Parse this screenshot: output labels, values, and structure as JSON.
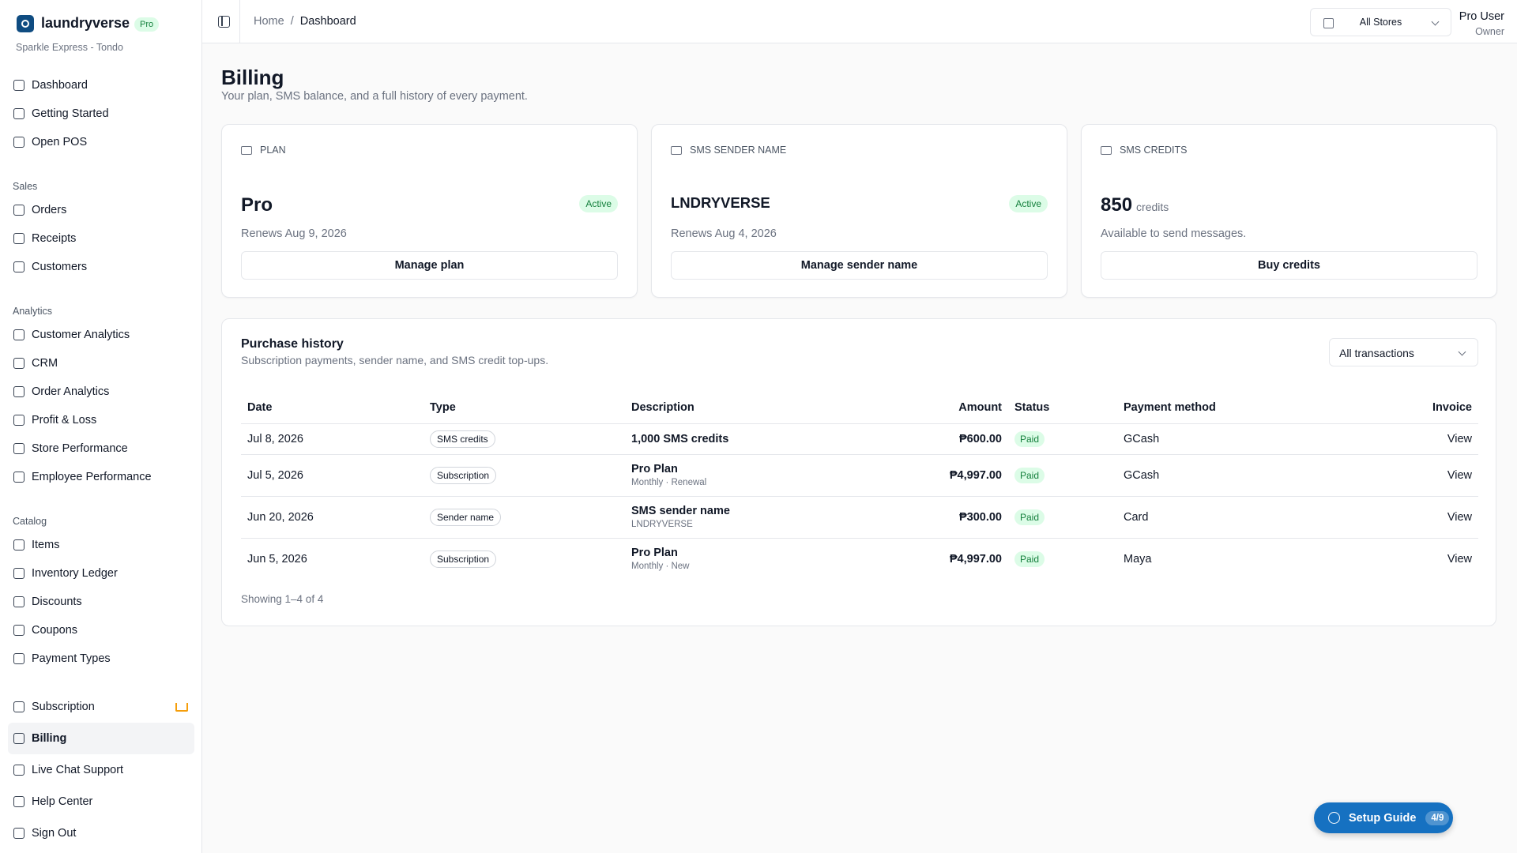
{
  "brand": {
    "name": "laundryverse",
    "badge": "Pro",
    "store": "Sparkle Express - Tondo"
  },
  "nav": {
    "top": [
      "Dashboard",
      "Getting Started",
      "Open POS"
    ],
    "groups": [
      {
        "label": "Sales",
        "items": [
          "Orders",
          "Receipts",
          "Customers"
        ]
      },
      {
        "label": "Analytics",
        "items": [
          "Customer Analytics",
          "CRM",
          "Order Analytics",
          "Profit & Loss",
          "Store Performance",
          "Employee Performance"
        ]
      },
      {
        "label": "Catalog",
        "items": [
          "Items",
          "Inventory Ledger",
          "Discounts",
          "Coupons",
          "Payment Types"
        ]
      }
    ],
    "bottom": [
      "Subscription",
      "Billing",
      "Live Chat Support",
      "Help Center",
      "Sign Out"
    ],
    "active": "Billing"
  },
  "header": {
    "breadcrumbs": [
      "Home",
      "Dashboard"
    ],
    "store_select": "All Stores",
    "user": {
      "name": "Pro User",
      "role": "Owner"
    }
  },
  "page": {
    "title": "Billing",
    "subtitle": "Your plan, SMS balance, and a full history of every payment."
  },
  "cards": [
    {
      "label": "PLAN",
      "value": "Pro",
      "status": "Active",
      "meta": "Renews Aug 9, 2026",
      "action": "Manage plan"
    },
    {
      "label": "SMS SENDER NAME",
      "value": "LNDRYVERSE",
      "status": "Active",
      "meta": "Renews Aug 4, 2026",
      "action": "Manage sender name"
    },
    {
      "label": "SMS CREDITS",
      "value": "850",
      "unit": "credits",
      "meta": "Available to send messages.",
      "action": "Buy credits"
    }
  ],
  "history": {
    "title": "Purchase history",
    "subtitle": "Subscription payments, sender name, and SMS credit top-ups.",
    "filter": "All transactions",
    "columns": [
      "Date",
      "Type",
      "Description",
      "Amount",
      "Status",
      "Payment method",
      "Invoice"
    ],
    "rows": [
      {
        "date": "Jul 8, 2026",
        "type": "SMS credits",
        "description": "1,000 SMS credits",
        "amount": "₱600.00",
        "status": "Paid",
        "method": "GCash",
        "invoice": "View"
      },
      {
        "date": "Jul 5, 2026",
        "type": "Subscription",
        "description": "Pro Plan",
        "detail": "Monthly · Renewal",
        "amount": "₱4,997.00",
        "status": "Paid",
        "method": "GCash",
        "invoice": "View"
      },
      {
        "date": "Jun 20, 2026",
        "type": "Sender name",
        "description": "SMS sender name",
        "detail": "LNDRYVERSE",
        "amount": "₱300.00",
        "status": "Paid",
        "method": "Card",
        "invoice": "View"
      },
      {
        "date": "Jun 5, 2026",
        "type": "Subscription",
        "description": "Pro Plan",
        "detail": "Monthly · New",
        "amount": "₱4,997.00",
        "status": "Paid",
        "method": "Maya",
        "invoice": "View"
      }
    ],
    "footer": "Showing 1–4 of 4"
  },
  "setup_guide": {
    "label": "Setup Guide",
    "progress": "4/9"
  }
}
